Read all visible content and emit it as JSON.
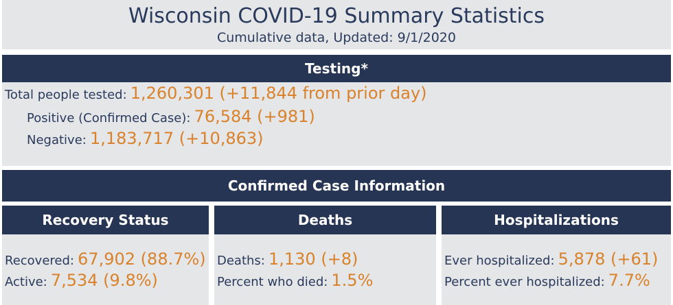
{
  "header": {
    "title": "Wisconsin COVID-19 Summary Statistics",
    "subtitle": "Cumulative data, Updated: 9/1/2020"
  },
  "testing": {
    "heading": "Testing*",
    "total_label": "Total people tested:",
    "total_value": "1,260,301 (+11,844 from prior day)",
    "positive_label": "Positive (Confirmed Case):",
    "positive_value": "76,584 (+981)",
    "negative_label": "Negative:",
    "negative_value": "1,183,717 (+10,863)"
  },
  "confirmed": {
    "heading": "Confirmed Case Information"
  },
  "recovery": {
    "heading": "Recovery Status",
    "recovered_label": "Recovered:",
    "recovered_value": "67,902 (88.7%)",
    "active_label": "Active:",
    "active_value": "7,534 (9.8%)"
  },
  "deaths": {
    "heading": "Deaths",
    "deaths_label": "Deaths:",
    "deaths_value": "1,130 (+8)",
    "percent_label": "Percent who died:",
    "percent_value": "1.5%"
  },
  "hospitalizations": {
    "heading": "Hospitalizations",
    "ever_label": "Ever hospitalized:",
    "ever_value": "5,878 (+61)",
    "percent_label": "Percent ever hospitalized:",
    "percent_value": "7.7%"
  },
  "colors": {
    "navy": "#273554",
    "accent": "#d9822b",
    "panel": "#e5e6e8",
    "text": "#2a3a5c"
  }
}
